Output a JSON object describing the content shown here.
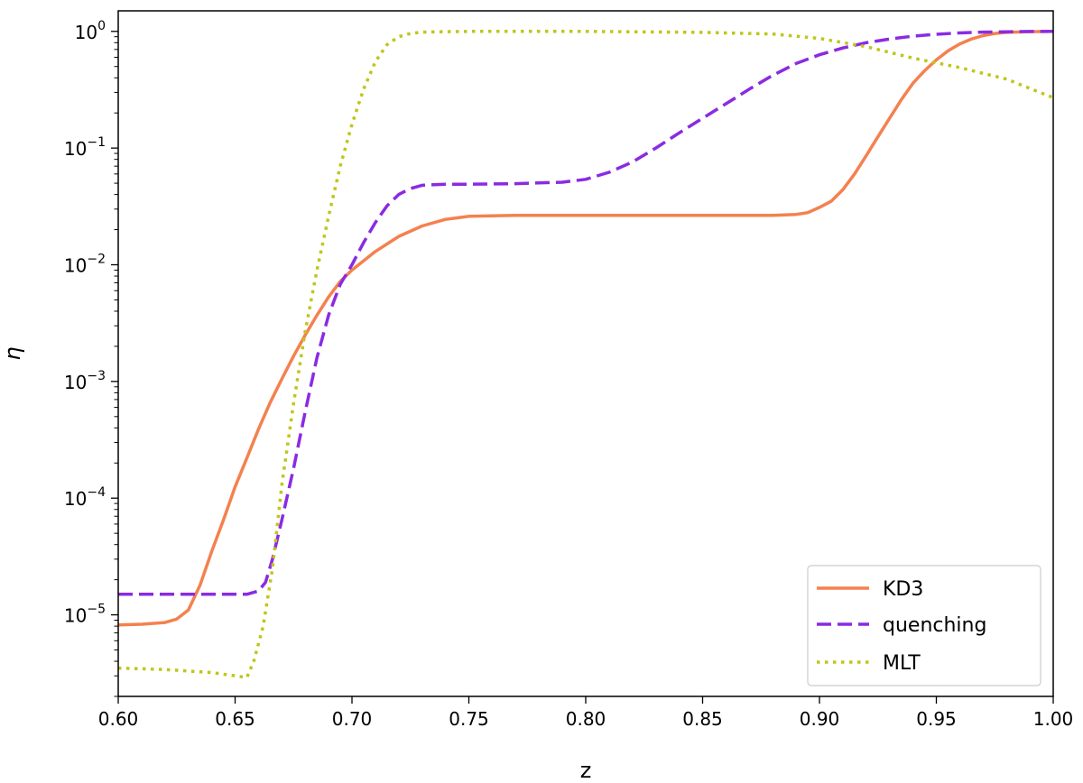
{
  "chart_data": {
    "type": "line",
    "title": "",
    "xlabel": "z",
    "ylabel": "η",
    "xlim": [
      0.6,
      1.0
    ],
    "ylim": [
      2e-06,
      1.5
    ],
    "yscale": "log",
    "grid": false,
    "legend_position": "bottom-right",
    "xticks": [
      "0.60",
      "0.65",
      "0.70",
      "0.75",
      "0.80",
      "0.85",
      "0.90",
      "0.95",
      "1.00"
    ],
    "yticks": [
      {
        "base": "10",
        "exp": "−5"
      },
      {
        "base": "10",
        "exp": "−4"
      },
      {
        "base": "10",
        "exp": "−3"
      },
      {
        "base": "10",
        "exp": "−2"
      },
      {
        "base": "10",
        "exp": "−1"
      },
      {
        "base": "10",
        "exp": "0"
      }
    ],
    "series": [
      {
        "name": "KD3",
        "color": "#f4814f",
        "style": "solid",
        "x": [
          0.6,
          0.61,
          0.62,
          0.625,
          0.63,
          0.635,
          0.64,
          0.645,
          0.65,
          0.655,
          0.66,
          0.665,
          0.67,
          0.675,
          0.68,
          0.685,
          0.69,
          0.695,
          0.7,
          0.71,
          0.72,
          0.73,
          0.74,
          0.75,
          0.77,
          0.8,
          0.85,
          0.88,
          0.89,
          0.895,
          0.9,
          0.905,
          0.91,
          0.915,
          0.92,
          0.925,
          0.93,
          0.935,
          0.94,
          0.945,
          0.95,
          0.955,
          0.96,
          0.965,
          0.97,
          0.975,
          0.98,
          0.99,
          1.0
        ],
        "y": [
          8.2e-06,
          8.3e-06,
          8.6e-06,
          9.2e-06,
          1.1e-05,
          1.8e-05,
          3.5e-05,
          6.5e-05,
          0.000125,
          0.00022,
          0.00039,
          0.00066,
          0.00105,
          0.00165,
          0.0025,
          0.0037,
          0.0053,
          0.0072,
          0.009,
          0.013,
          0.0175,
          0.0215,
          0.0245,
          0.026,
          0.0265,
          0.0265,
          0.0265,
          0.0265,
          0.027,
          0.028,
          0.031,
          0.035,
          0.044,
          0.06,
          0.086,
          0.125,
          0.18,
          0.26,
          0.36,
          0.46,
          0.57,
          0.68,
          0.78,
          0.86,
          0.92,
          0.96,
          0.98,
          0.995,
          1.0
        ]
      },
      {
        "name": "quenching",
        "color": "#8a2be2",
        "style": "dashed",
        "x": [
          0.6,
          0.62,
          0.64,
          0.655,
          0.66,
          0.663,
          0.666,
          0.67,
          0.675,
          0.68,
          0.685,
          0.69,
          0.695,
          0.7,
          0.705,
          0.71,
          0.715,
          0.72,
          0.725,
          0.73,
          0.74,
          0.75,
          0.77,
          0.79,
          0.8,
          0.81,
          0.82,
          0.83,
          0.84,
          0.85,
          0.86,
          0.87,
          0.88,
          0.89,
          0.9,
          0.91,
          0.92,
          0.93,
          0.94,
          0.95,
          0.96,
          0.97,
          0.98,
          0.99,
          1.0
        ],
        "y": [
          1.5e-05,
          1.5e-05,
          1.5e-05,
          1.5e-05,
          1.6e-05,
          1.9e-05,
          3e-05,
          6.5e-05,
          0.00018,
          0.00055,
          0.0016,
          0.0037,
          0.0068,
          0.01,
          0.0155,
          0.023,
          0.032,
          0.04,
          0.045,
          0.048,
          0.049,
          0.049,
          0.0495,
          0.051,
          0.054,
          0.062,
          0.076,
          0.1,
          0.135,
          0.18,
          0.24,
          0.32,
          0.42,
          0.53,
          0.63,
          0.72,
          0.8,
          0.86,
          0.91,
          0.945,
          0.97,
          0.985,
          0.993,
          0.998,
          1.0
        ]
      },
      {
        "name": "MLT",
        "color": "#c2c51a",
        "style": "dotted",
        "x": [
          0.6,
          0.62,
          0.64,
          0.65,
          0.655,
          0.658,
          0.662,
          0.666,
          0.67,
          0.675,
          0.68,
          0.685,
          0.69,
          0.695,
          0.7,
          0.705,
          0.71,
          0.715,
          0.72,
          0.725,
          0.73,
          0.74,
          0.75,
          0.8,
          0.85,
          0.88,
          0.9,
          0.92,
          0.94,
          0.96,
          0.98,
          1.0
        ],
        "y": [
          3.5e-06,
          3.4e-06,
          3.2e-06,
          3e-06,
          2.9e-06,
          4e-06,
          8e-06,
          2.5e-05,
          0.00013,
          0.00065,
          0.0027,
          0.009,
          0.026,
          0.07,
          0.16,
          0.32,
          0.55,
          0.77,
          0.9,
          0.96,
          0.985,
          0.995,
          1.0,
          1.0,
          0.98,
          0.95,
          0.87,
          0.74,
          0.59,
          0.49,
          0.39,
          0.27
        ]
      }
    ]
  }
}
